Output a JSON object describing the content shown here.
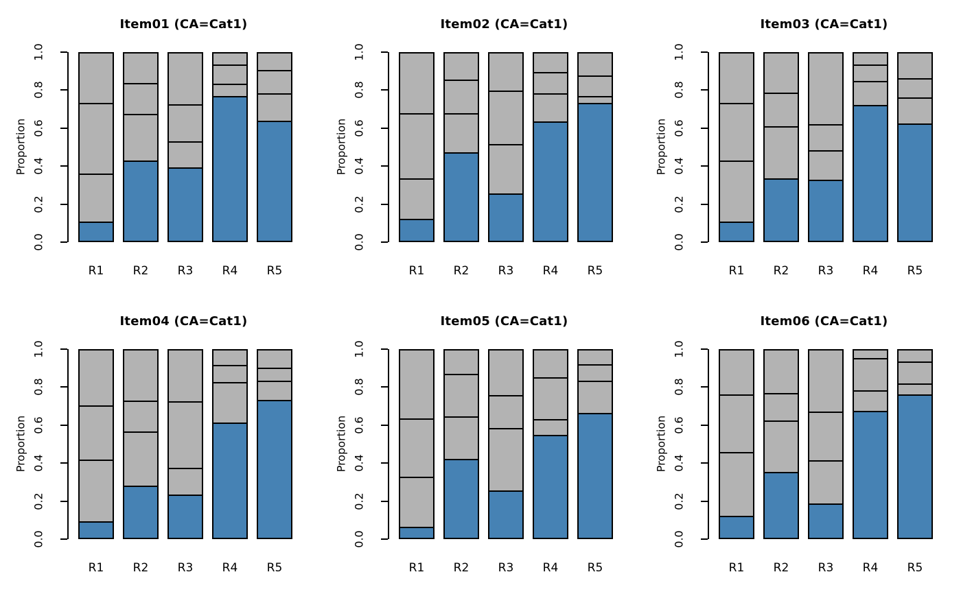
{
  "figure": {
    "background": "#FFFFFF",
    "grid_layout": "2 rows x 3 columns",
    "colors": {
      "highlight_fill": "#4682B4",
      "other_fill": "#B3B3B3",
      "bar_border": "#000000",
      "text": "#000000"
    }
  },
  "chart_data": [
    {
      "type": "bar",
      "stacked": true,
      "title": "Item01 (CA=Cat1)",
      "xlabel": "",
      "ylabel": "Proportion",
      "ylim": [
        0,
        1
      ],
      "grid": false,
      "legend": "none",
      "yticks": [
        "0.0",
        "0.2",
        "0.4",
        "0.6",
        "0.8",
        "1.0"
      ],
      "categories": [
        "R1",
        "R2",
        "R3",
        "R4",
        "R5"
      ],
      "segment_colors": [
        "#4682B4",
        "#B3B3B3",
        "#B3B3B3",
        "#B3B3B3"
      ],
      "stacks": [
        [
          0.095,
          0.255,
          0.38,
          0.27
        ],
        [
          0.42,
          0.25,
          0.165,
          0.165
        ],
        [
          0.385,
          0.14,
          0.195,
          0.28
        ],
        [
          0.765,
          0.065,
          0.105,
          0.065
        ],
        [
          0.635,
          0.145,
          0.125,
          0.095
        ]
      ]
    },
    {
      "type": "bar",
      "stacked": true,
      "title": "Item02 (CA=Cat1)",
      "xlabel": "",
      "ylabel": "Proportion",
      "ylim": [
        0,
        1
      ],
      "grid": false,
      "legend": "none",
      "yticks": [
        "0.0",
        "0.2",
        "0.4",
        "0.6",
        "0.8",
        "1.0"
      ],
      "categories": [
        "R1",
        "R2",
        "R3",
        "R4",
        "R5"
      ],
      "segment_colors": [
        "#4682B4",
        "#B3B3B3",
        "#B3B3B3",
        "#B3B3B3"
      ],
      "stacks": [
        [
          0.11,
          0.215,
          0.35,
          0.325
        ],
        [
          0.465,
          0.21,
          0.18,
          0.145
        ],
        [
          0.245,
          0.265,
          0.285,
          0.205
        ],
        [
          0.63,
          0.15,
          0.115,
          0.105
        ],
        [
          0.73,
          0.035,
          0.11,
          0.125
        ]
      ]
    },
    {
      "type": "bar",
      "stacked": true,
      "title": "Item03 (CA=Cat1)",
      "xlabel": "",
      "ylabel": "Proportion",
      "ylim": [
        0,
        1
      ],
      "grid": false,
      "legend": "none",
      "yticks": [
        "0.0",
        "0.2",
        "0.4",
        "0.6",
        "0.8",
        "1.0"
      ],
      "categories": [
        "R1",
        "R2",
        "R3",
        "R4",
        "R5"
      ],
      "segment_colors": [
        "#4682B4",
        "#B3B3B3",
        "#B3B3B3",
        "#B3B3B3"
      ],
      "stacks": [
        [
          0.095,
          0.325,
          0.31,
          0.27
        ],
        [
          0.325,
          0.28,
          0.18,
          0.215
        ],
        [
          0.318,
          0.157,
          0.14,
          0.385
        ],
        [
          0.718,
          0.127,
          0.09,
          0.065
        ],
        [
          0.62,
          0.14,
          0.1,
          0.14
        ]
      ]
    },
    {
      "type": "bar",
      "stacked": true,
      "title": "Item04 (CA=Cat1)",
      "xlabel": "",
      "ylabel": "Proportion",
      "ylim": [
        0,
        1
      ],
      "grid": false,
      "legend": "none",
      "yticks": [
        "0.0",
        "0.2",
        "0.4",
        "0.6",
        "0.8",
        "1.0"
      ],
      "categories": [
        "R1",
        "R2",
        "R3",
        "R4",
        "R5"
      ],
      "segment_colors": [
        "#4682B4",
        "#B3B3B3",
        "#B3B3B3",
        "#B3B3B3"
      ],
      "stacks": [
        [
          0.08,
          0.33,
          0.29,
          0.3
        ],
        [
          0.272,
          0.288,
          0.165,
          0.275
        ],
        [
          0.225,
          0.143,
          0.352,
          0.28
        ],
        [
          0.607,
          0.218,
          0.09,
          0.085
        ],
        [
          0.73,
          0.1,
          0.07,
          0.1
        ]
      ]
    },
    {
      "type": "bar",
      "stacked": true,
      "title": "Item05 (CA=Cat1)",
      "xlabel": "",
      "ylabel": "Proportion",
      "ylim": [
        0,
        1
      ],
      "grid": false,
      "legend": "none",
      "yticks": [
        "0.0",
        "0.2",
        "0.4",
        "0.6",
        "0.8",
        "1.0"
      ],
      "categories": [
        "R1",
        "R2",
        "R3",
        "R4",
        "R5"
      ],
      "segment_colors": [
        "#4682B4",
        "#B3B3B3",
        "#B3B3B3",
        "#B3B3B3"
      ],
      "stacks": [
        [
          0.05,
          0.27,
          0.31,
          0.37
        ],
        [
          0.415,
          0.225,
          0.23,
          0.13
        ],
        [
          0.245,
          0.335,
          0.175,
          0.245
        ],
        [
          0.542,
          0.085,
          0.223,
          0.15
        ],
        [
          0.66,
          0.17,
          0.09,
          0.08
        ]
      ]
    },
    {
      "type": "bar",
      "stacked": true,
      "title": "Item06 (CA=Cat1)",
      "xlabel": "",
      "ylabel": "Proportion",
      "ylim": [
        0,
        1
      ],
      "grid": false,
      "legend": "none",
      "yticks": [
        "0.0",
        "0.2",
        "0.4",
        "0.6",
        "0.8",
        "1.0"
      ],
      "categories": [
        "R1",
        "R2",
        "R3",
        "R4",
        "R5"
      ],
      "segment_colors": [
        "#4682B4",
        "#B3B3B3",
        "#B3B3B3",
        "#B3B3B3"
      ],
      "stacks": [
        [
          0.11,
          0.34,
          0.31,
          0.24
        ],
        [
          0.345,
          0.275,
          0.145,
          0.235
        ],
        [
          0.175,
          0.23,
          0.26,
          0.335
        ],
        [
          0.672,
          0.108,
          0.172,
          0.048
        ],
        [
          0.76,
          0.058,
          0.118,
          0.064
        ]
      ]
    }
  ]
}
